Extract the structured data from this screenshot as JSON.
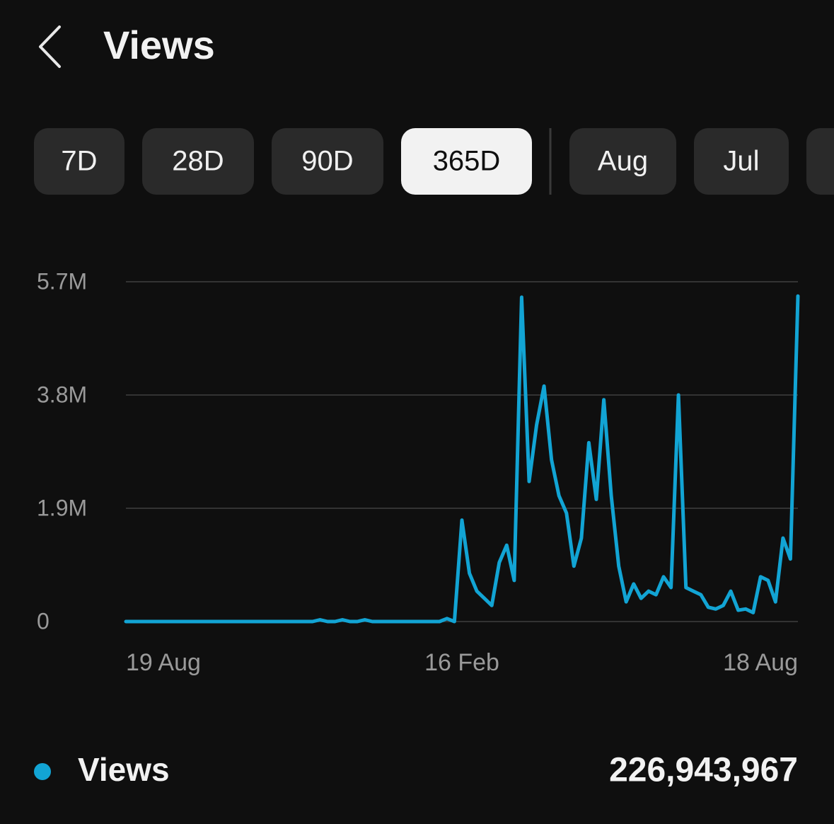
{
  "header": {
    "title": "Views"
  },
  "tabs": [
    {
      "label": "7D"
    },
    {
      "label": "28D"
    },
    {
      "label": "90D"
    },
    {
      "label": "365D",
      "selected": true
    },
    {
      "label": "Aug"
    },
    {
      "label": "Jul"
    }
  ],
  "chart_data": {
    "type": "line",
    "categories": [
      "19 Aug",
      null,
      null,
      null,
      null,
      null,
      null,
      null,
      null,
      null,
      null,
      null,
      null,
      null,
      null,
      null,
      null,
      null,
      null,
      null,
      null,
      null,
      null,
      null,
      null,
      null,
      null,
      null,
      null,
      null,
      null,
      null,
      null,
      null,
      null,
      null,
      null,
      null,
      null,
      null,
      null,
      null,
      null,
      null,
      null,
      "16 Feb",
      null,
      null,
      null,
      null,
      null,
      null,
      null,
      null,
      null,
      null,
      null,
      null,
      null,
      null,
      null,
      null,
      null,
      null,
      null,
      null,
      null,
      null,
      null,
      null,
      null,
      null,
      null,
      null,
      null,
      null,
      null,
      null,
      null,
      null,
      null,
      null,
      null,
      null,
      null,
      null,
      null,
      null,
      null,
      null,
      "18 Aug"
    ],
    "series": [
      {
        "name": "Views",
        "color": "#12a4d4",
        "values": [
          0,
          0,
          0,
          0,
          0,
          0,
          0,
          0,
          0,
          0,
          0,
          0,
          0,
          0,
          0,
          0,
          0,
          0,
          0,
          0,
          0,
          0,
          0,
          0,
          0,
          0,
          30000,
          0,
          0,
          30000,
          0,
          0,
          30000,
          0,
          0,
          0,
          0,
          0,
          0,
          0,
          0,
          0,
          0,
          50000,
          0,
          1700000,
          810000,
          510000,
          390000,
          270000,
          990000,
          1280000,
          690000,
          5440000,
          2350000,
          3300000,
          3950000,
          2710000,
          2110000,
          1820000,
          930000,
          1400000,
          3000000,
          2050000,
          3720000,
          2110000,
          930000,
          330000,
          630000,
          390000,
          510000,
          450000,
          750000,
          570000,
          3800000,
          570000,
          510000,
          450000,
          240000,
          210000,
          270000,
          510000,
          190000,
          210000,
          150000,
          750000,
          690000,
          330000,
          1400000,
          1050000,
          5460000
        ]
      }
    ],
    "ylim": [
      0,
      5700000
    ],
    "yticks": [
      {
        "value": 0,
        "label": "0"
      },
      {
        "value": 1900000,
        "label": "1.9M"
      },
      {
        "value": 3800000,
        "label": "3.8M"
      },
      {
        "value": 5700000,
        "label": "5.7M"
      }
    ],
    "grid": true
  },
  "summary": {
    "total": "226,943,967"
  }
}
